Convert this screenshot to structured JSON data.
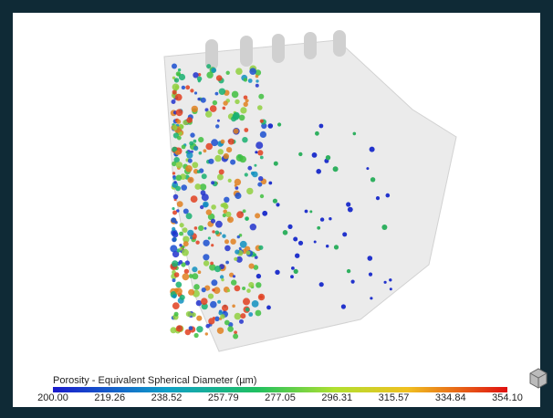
{
  "colorbar": {
    "title": "Porosity - Equivalent Spherical Diameter (µm)",
    "tick_labels": [
      "200.00",
      "219.26",
      "238.52",
      "257.79",
      "277.05",
      "296.31",
      "315.57",
      "334.84",
      "354.10"
    ]
  }
}
